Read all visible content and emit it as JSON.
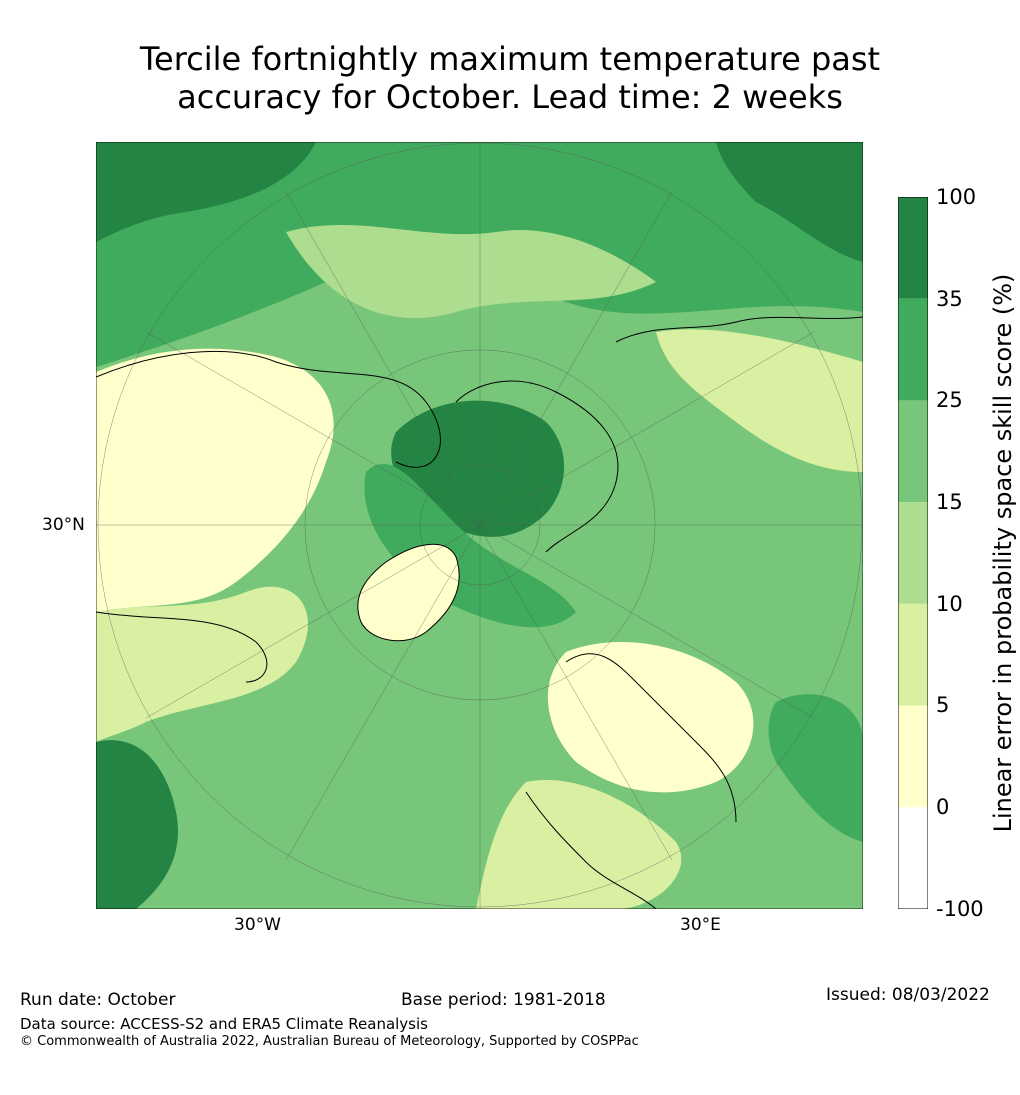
{
  "title": {
    "line1": "Tercile fortnightly maximum temperature past",
    "line2": "accuracy for October. Lead time: 2 weeks"
  },
  "map": {
    "projection": "north-polar-stereographic",
    "lat_label": "30°N",
    "lon_labels": [
      "30°W",
      "30°E"
    ],
    "land_color": "#ffffff",
    "coastline_color": "#000000"
  },
  "colorbar": {
    "title": "Linear error in probability space skill score (%)",
    "ticks": [
      "100",
      "35",
      "25",
      "15",
      "10",
      "5",
      "0",
      "-100"
    ],
    "bins": [
      {
        "from": "35",
        "to": "100",
        "color": "#238443"
      },
      {
        "from": "25",
        "to": "35",
        "color": "#41ab5d"
      },
      {
        "from": "15",
        "to": "25",
        "color": "#78c679"
      },
      {
        "from": "10",
        "to": "15",
        "color": "#addd8e"
      },
      {
        "from": "5",
        "to": "10",
        "color": "#d9f0a3"
      },
      {
        "from": "0",
        "to": "5",
        "color": "#ffffcc"
      },
      {
        "from": "-100",
        "to": "0",
        "color": "#ffffff"
      }
    ]
  },
  "footer": {
    "run_date": "Run date: October",
    "base_period": "Base period: 1981-2018",
    "issued": "Issued: 08/03/2022",
    "data_source": "Data source: ACCESS-S2 and ERA5 Climate Reanalysis",
    "copyright": "© Commonwealth of Australia 2022, Australian Bureau of Meteorology, Supported by COSPPac"
  }
}
